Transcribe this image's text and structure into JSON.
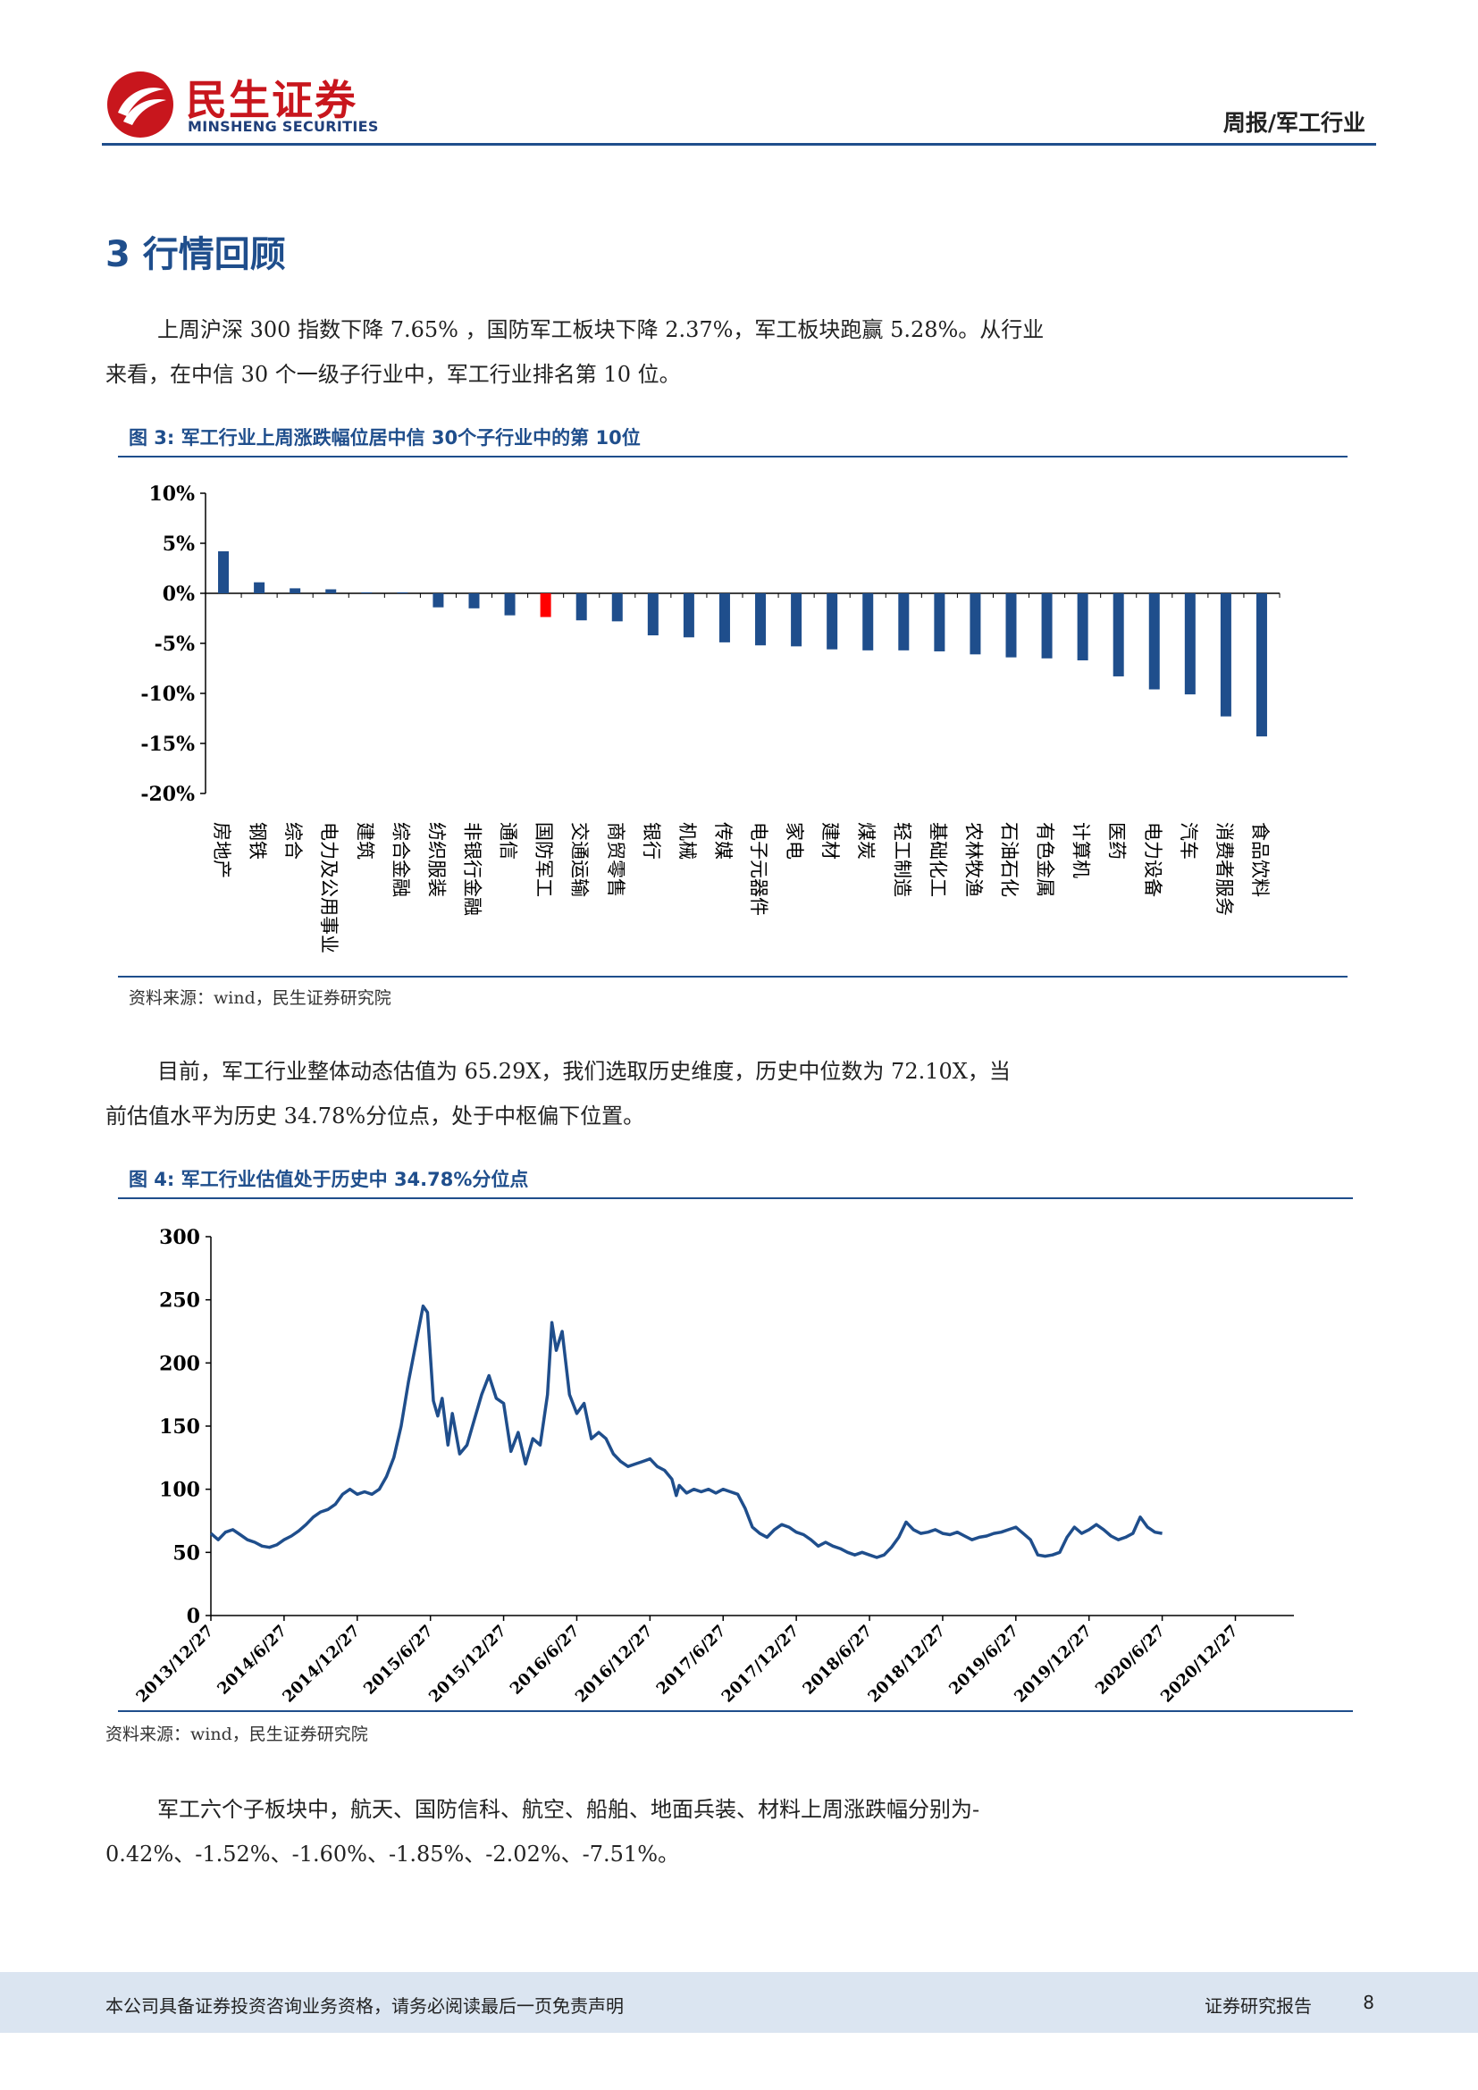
{
  "header": {
    "logo_cn": "民生证券",
    "logo_en": "MINSHENG SECURITIES",
    "report_tag": "周报/军工行业",
    "brand_color": "#c8161d"
  },
  "section": {
    "title": "3 行情回顾"
  },
  "para1": {
    "line1": "上周沪深 300 指数下降 7.65% ，国防军工板块下降 2.37%，军工板块跑赢 5.28%。从行业",
    "line2": "来看，在中信 30 个一级子行业中，军工行业排名第 10 位。"
  },
  "figure3": {
    "title": "图 3:  军工行业上周涨跌幅位居中信 30个子行业中的第 10位",
    "source": "资料来源：wind，民生证券研究院"
  },
  "para2": {
    "line1": "目前，军工行业整体动态估值为 65.29X，我们选取历史维度，历史中位数为 72.10X，当",
    "line2": "前估值水平为历史 34.78%分位点，处于中枢偏下位置。"
  },
  "figure4": {
    "title": "图 4:  军工行业估值处于历史中 34.78%分位点",
    "source": "资料来源：wind，民生证券研究院"
  },
  "para3": {
    "line1": "军工六个子板块中，航天、国防信科、航空、船舶、地面兵装、材料上周涨跌幅分别为-",
    "line2": "0.42%、-1.52%、-1.60%、-1.85%、-2.02%、-7.51%。"
  },
  "footer": {
    "disclaimer": "本公司具备证券投资咨询业务资格，请务必阅读最后一页免责声明",
    "label": "证券研究报告",
    "page": "8"
  },
  "chart_data": [
    {
      "type": "bar",
      "title": "军工行业上周涨跌幅位居中信 30个子行业中的第 10位",
      "categories": [
        "房地产",
        "钢铁",
        "综合",
        "电力及公用事业",
        "建筑",
        "综合金融",
        "纺织服装",
        "非银行金融",
        "通信",
        "国防军工",
        "交通运输",
        "商贸零售",
        "银行",
        "机械",
        "传媒",
        "电子元器件",
        "家电",
        "建材",
        "煤炭",
        "轻工制造",
        "基础化工",
        "农林牧渔",
        "石油石化",
        "有色金属",
        "计算机",
        "医药",
        "电力设备",
        "汽车",
        "消费者服务",
        "食品饮料"
      ],
      "values": [
        4.2,
        1.1,
        0.5,
        0.4,
        0.1,
        0.1,
        -1.4,
        -1.5,
        -2.2,
        -2.37,
        -2.7,
        -2.8,
        -4.2,
        -4.4,
        -4.9,
        -5.2,
        -5.3,
        -5.6,
        -5.7,
        -5.7,
        -5.8,
        -6.1,
        -6.4,
        -6.5,
        -6.7,
        -8.3,
        -9.6,
        -10.1,
        -12.3,
        -14.3
      ],
      "highlight": "国防军工",
      "highlight_color": "#ff0000",
      "bar_color": "#1f4e8c",
      "yticks": [
        "10%",
        "5%",
        "0%",
        "-5%",
        "-10%",
        "-15%",
        "-20%"
      ],
      "ylim": [
        -20,
        10
      ]
    },
    {
      "type": "line",
      "title": "军工行业估值处于历史中 34.78%分位点",
      "line_color": "#1f4e8c",
      "ylim": [
        0,
        300
      ],
      "yticks": [
        "300",
        "250",
        "200",
        "150",
        "100",
        "50",
        "0"
      ],
      "xticks": [
        "2013/12/27",
        "2014/6/27",
        "2014/12/27",
        "2015/6/27",
        "2015/12/27",
        "2016/6/27",
        "2016/12/27",
        "2017/6/27",
        "2017/12/27",
        "2018/6/27",
        "2018/12/27",
        "2019/6/27",
        "2019/12/27",
        "2020/6/27",
        "2020/12/27"
      ],
      "x_range": [
        0,
        7.4
      ],
      "points": [
        [
          0.0,
          65
        ],
        [
          0.05,
          60
        ],
        [
          0.1,
          66
        ],
        [
          0.15,
          68
        ],
        [
          0.2,
          64
        ],
        [
          0.25,
          60
        ],
        [
          0.3,
          58
        ],
        [
          0.35,
          55
        ],
        [
          0.4,
          54
        ],
        [
          0.45,
          56
        ],
        [
          0.5,
          60
        ],
        [
          0.55,
          63
        ],
        [
          0.6,
          67
        ],
        [
          0.65,
          72
        ],
        [
          0.7,
          78
        ],
        [
          0.75,
          82
        ],
        [
          0.8,
          84
        ],
        [
          0.85,
          88
        ],
        [
          0.9,
          96
        ],
        [
          0.95,
          100
        ],
        [
          1.0,
          96
        ],
        [
          1.05,
          98
        ],
        [
          1.1,
          96
        ],
        [
          1.15,
          100
        ],
        [
          1.2,
          110
        ],
        [
          1.25,
          125
        ],
        [
          1.3,
          150
        ],
        [
          1.35,
          185
        ],
        [
          1.4,
          215
        ],
        [
          1.45,
          245
        ],
        [
          1.48,
          240
        ],
        [
          1.52,
          170
        ],
        [
          1.55,
          158
        ],
        [
          1.58,
          172
        ],
        [
          1.62,
          135
        ],
        [
          1.65,
          160
        ],
        [
          1.7,
          128
        ],
        [
          1.75,
          135
        ],
        [
          1.8,
          155
        ],
        [
          1.85,
          175
        ],
        [
          1.9,
          190
        ],
        [
          1.95,
          172
        ],
        [
          2.0,
          168
        ],
        [
          2.05,
          130
        ],
        [
          2.1,
          145
        ],
        [
          2.15,
          120
        ],
        [
          2.2,
          140
        ],
        [
          2.25,
          135
        ],
        [
          2.3,
          175
        ],
        [
          2.33,
          232
        ],
        [
          2.36,
          210
        ],
        [
          2.4,
          225
        ],
        [
          2.45,
          175
        ],
        [
          2.5,
          160
        ],
        [
          2.55,
          168
        ],
        [
          2.6,
          140
        ],
        [
          2.65,
          145
        ],
        [
          2.7,
          140
        ],
        [
          2.75,
          128
        ],
        [
          2.8,
          122
        ],
        [
          2.85,
          118
        ],
        [
          2.9,
          120
        ],
        [
          2.95,
          122
        ],
        [
          3.0,
          124
        ],
        [
          3.05,
          118
        ],
        [
          3.1,
          115
        ],
        [
          3.15,
          108
        ],
        [
          3.18,
          95
        ],
        [
          3.2,
          103
        ],
        [
          3.25,
          97
        ],
        [
          3.3,
          100
        ],
        [
          3.35,
          98
        ],
        [
          3.4,
          100
        ],
        [
          3.45,
          97
        ],
        [
          3.5,
          100
        ],
        [
          3.55,
          98
        ],
        [
          3.6,
          96
        ],
        [
          3.65,
          85
        ],
        [
          3.7,
          70
        ],
        [
          3.75,
          65
        ],
        [
          3.8,
          62
        ],
        [
          3.85,
          68
        ],
        [
          3.9,
          72
        ],
        [
          3.95,
          70
        ],
        [
          4.0,
          66
        ],
        [
          4.05,
          64
        ],
        [
          4.1,
          60
        ],
        [
          4.15,
          55
        ],
        [
          4.2,
          58
        ],
        [
          4.25,
          55
        ],
        [
          4.3,
          53
        ],
        [
          4.35,
          50
        ],
        [
          4.4,
          48
        ],
        [
          4.45,
          50
        ],
        [
          4.5,
          48
        ],
        [
          4.55,
          46
        ],
        [
          4.6,
          48
        ],
        [
          4.65,
          54
        ],
        [
          4.7,
          62
        ],
        [
          4.75,
          74
        ],
        [
          4.8,
          68
        ],
        [
          4.85,
          65
        ],
        [
          4.9,
          66
        ],
        [
          4.95,
          68
        ],
        [
          5.0,
          65
        ],
        [
          5.05,
          64
        ],
        [
          5.1,
          66
        ],
        [
          5.15,
          63
        ],
        [
          5.2,
          60
        ],
        [
          5.25,
          62
        ],
        [
          5.3,
          63
        ],
        [
          5.35,
          65
        ],
        [
          5.4,
          66
        ],
        [
          5.45,
          68
        ],
        [
          5.5,
          70
        ],
        [
          5.55,
          65
        ],
        [
          5.6,
          60
        ],
        [
          5.65,
          48
        ],
        [
          5.7,
          47
        ],
        [
          5.75,
          48
        ],
        [
          5.8,
          50
        ],
        [
          5.85,
          62
        ],
        [
          5.9,
          70
        ],
        [
          5.95,
          65
        ],
        [
          6.0,
          68
        ],
        [
          6.05,
          72
        ],
        [
          6.1,
          68
        ],
        [
          6.15,
          63
        ],
        [
          6.2,
          60
        ],
        [
          6.25,
          62
        ],
        [
          6.3,
          65
        ],
        [
          6.35,
          78
        ],
        [
          6.4,
          70
        ],
        [
          6.45,
          66
        ],
        [
          6.5,
          65
        ]
      ]
    }
  ]
}
